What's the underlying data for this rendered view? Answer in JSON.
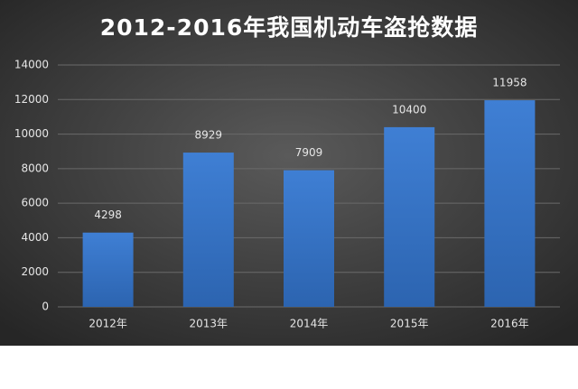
{
  "chart_data": {
    "type": "bar",
    "title": "2012-2016年我国机动车盗抢数据",
    "categories": [
      "2012年",
      "2013年",
      "2014年",
      "2015年",
      "2016年"
    ],
    "values": [
      4298,
      8929,
      7909,
      10400,
      11958
    ],
    "color": "#3f7fd4",
    "ylim": [
      0,
      14000
    ],
    "yticks": [
      0,
      2000,
      4000,
      6000,
      8000,
      10000,
      12000,
      14000
    ],
    "grid": true
  }
}
